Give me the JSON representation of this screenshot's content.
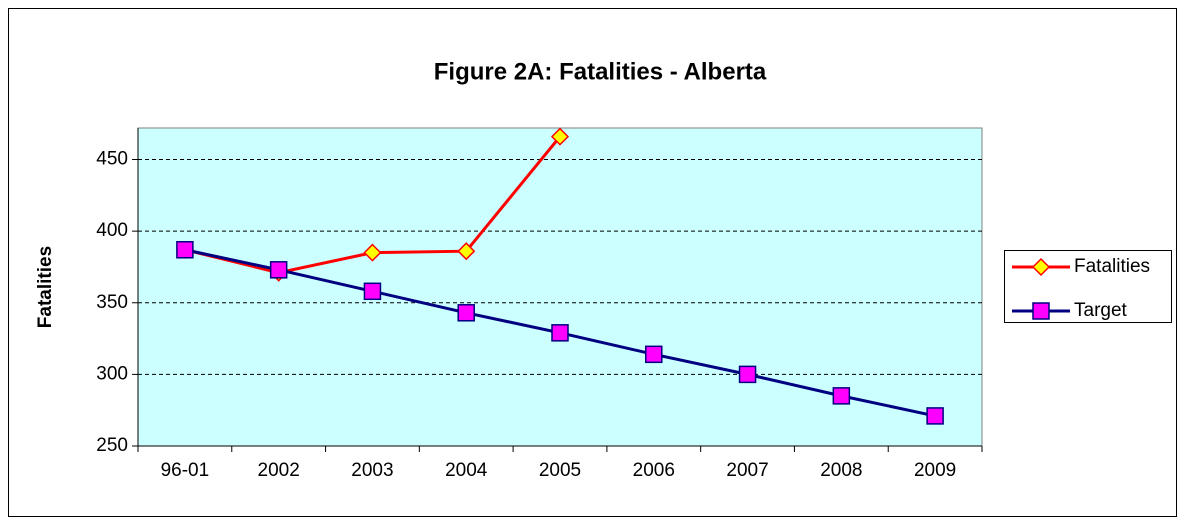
{
  "chart_data": {
    "type": "line",
    "title": "Figure 2A: Fatalities - Alberta",
    "y_label": "Fatalities",
    "categories": [
      "96-01",
      "2002",
      "2003",
      "2004",
      "2005",
      "2006",
      "2007",
      "2008",
      "2009"
    ],
    "series": [
      {
        "name": "Fatalities",
        "color": "#ff0000",
        "marker": "diamond",
        "marker_color": "#ffff00",
        "values": [
          387,
          371,
          385,
          386,
          466,
          null,
          null,
          null,
          null
        ]
      },
      {
        "name": "Target",
        "color": "#000080",
        "marker": "square",
        "marker_color": "#ff00ff",
        "values": [
          387,
          373,
          358,
          343,
          329,
          314,
          300,
          285,
          271
        ]
      }
    ],
    "ylim": [
      250,
      472
    ],
    "yticks": [
      250,
      300,
      350,
      400,
      450
    ],
    "grid": true,
    "legend": "right",
    "plot_background": "#ccffff"
  }
}
